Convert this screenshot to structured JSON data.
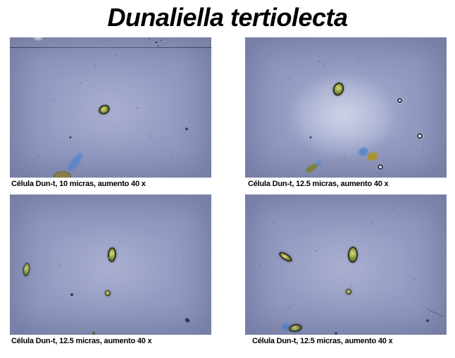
{
  "title": "Dunaliella tertiolecta",
  "panels": [
    {
      "caption": "Célula Dun-t, 10 micras, aumento 40 x",
      "image_alt": "Light micrograph, blue field: one oval green Dunaliella cell center, horizontal scratch line near top, blue stain smudge and olive blob at bottom left, scattered debris specks"
    },
    {
      "caption": "Célula Dun-t, 12.5 micras, aumento 40 x",
      "image_alt": "Light micrograph, blue field with bright center glow: oval green cell upper center, three white ring bubbles, blue and yellow stain blobs near bottom, scattered specks"
    },
    {
      "caption": "Célula Dun-t, 12.5 micras, aumento 40 x",
      "image_alt": "Light micrograph, blue field: vertical oval green cell center, narrow green cell at left edge, small round green cell below center, dark debris specks"
    },
    {
      "caption": "Célula Dun-t, 12.5 micras, aumento 40 x",
      "image_alt": "Light micrograph, blue field: vertical oval green cell upper center, elongated green cell at left, small round green cell center, blue-stained green cell at bottom left, debris specks"
    }
  ],
  "colors": {
    "page_bg": "#ffffff",
    "title_color": "#000000",
    "caption_color": "#000000",
    "micro_bg": "#8f9bc3",
    "micro_bg_light": "#aab4d4",
    "micro_vignette": "#5c6a9b",
    "cell_outline": "#2e331d",
    "cell_fill": "#8a9440",
    "cell_highlight": "#d8dc7a",
    "stain_blue": "#5d8bd3",
    "stain_yellow": "#b09a33",
    "speck_dark": "#39405a"
  }
}
